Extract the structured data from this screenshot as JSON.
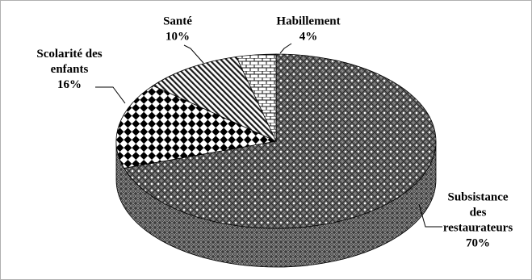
{
  "chart_data": {
    "type": "pie",
    "style": "3d",
    "title": "",
    "slices": [
      {
        "label": "Subsistance des restaurateurs",
        "label_lines": [
          "Subsistance",
          "des",
          "restaurateurs"
        ],
        "value": 70,
        "value_label": "70%",
        "pattern": "dotted-diamond"
      },
      {
        "label": "Scolarité des enfants",
        "label_lines": [
          "Scolarité des",
          "enfants"
        ],
        "value": 16,
        "value_label": "16%",
        "pattern": "checker"
      },
      {
        "label": "Santé",
        "label_lines": [
          "Santé"
        ],
        "value": 10,
        "value_label": "10%",
        "pattern": "diagonal-stripes"
      },
      {
        "label": "Habillement",
        "label_lines": [
          "Habillement"
        ],
        "value": 4,
        "value_label": "4%",
        "pattern": "brick"
      }
    ],
    "colors": {
      "ink": "#000000",
      "background": "#ffffff",
      "border": "#b0b0b0"
    }
  }
}
